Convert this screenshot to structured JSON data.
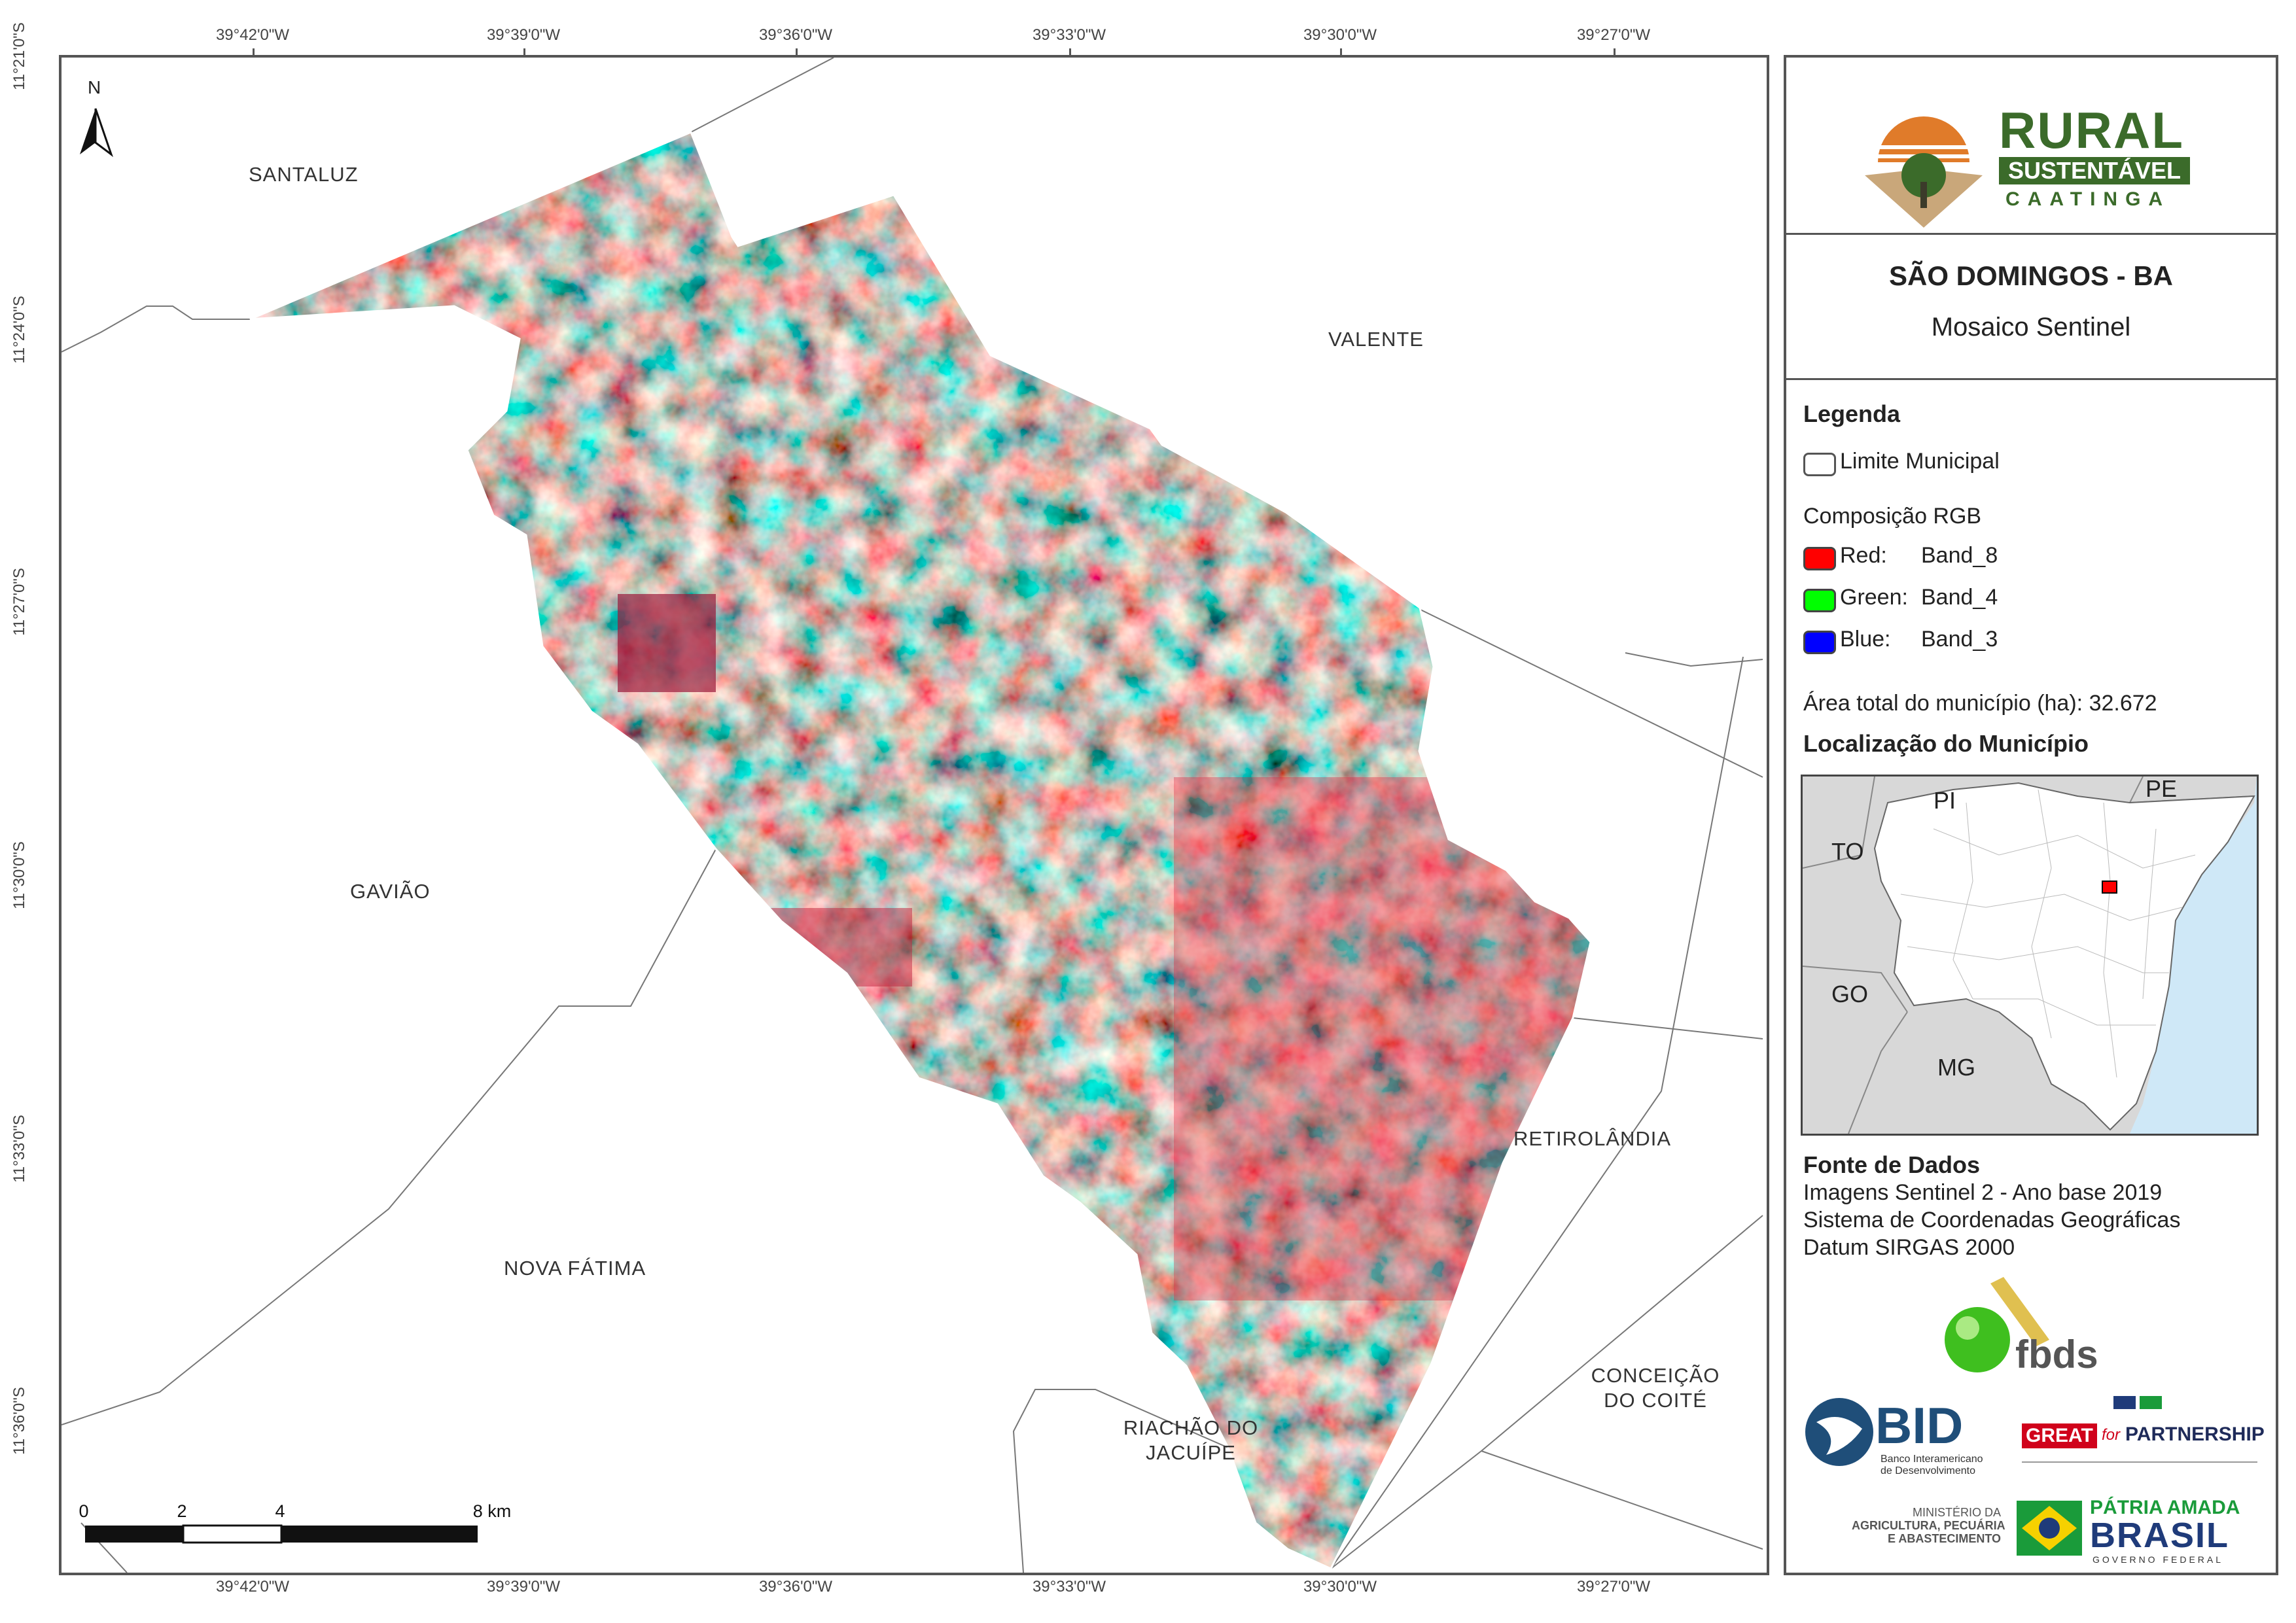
{
  "coordinates": {
    "longitudes": [
      "39°42'0\"W",
      "39°39'0\"W",
      "39°36'0\"W",
      "39°33'0\"W",
      "39°30'0\"W",
      "39°27'0\"W"
    ],
    "latitudes": [
      "11°21'0\"S",
      "11°24'0\"S",
      "11°27'0\"S",
      "11°30'0\"S",
      "11°33'0\"S",
      "11°36'0\"S"
    ]
  },
  "north_arrow": {
    "label": "N"
  },
  "places": {
    "santaluz": "SANTALUZ",
    "valente": "VALENTE",
    "gaviao": "GAVIÃO",
    "retirolandia": "RETIROLÂNDIA",
    "nova_fatima": "NOVA FÁTIMA",
    "conceicao_l1": "CONCEIÇÃO",
    "conceicao_l2": "DO COITÉ",
    "riachao_l1": "RIACHÃO DO",
    "riachao_l2": "JACUÍPE"
  },
  "scale_bar": {
    "labels": [
      "0",
      "2",
      "4",
      "8 km"
    ]
  },
  "logo": {
    "line1": "RURAL",
    "line2": "SUSTENTÁVEL",
    "line3": "CAATINGA"
  },
  "title": {
    "main": "SÃO DOMINGOS - BA",
    "subtitle": "Mosaico Sentinel"
  },
  "legend": {
    "heading": "Legenda",
    "boundary": "Limite Municipal",
    "rgb_heading": "Composição RGB",
    "bands": [
      {
        "channel": "Red:",
        "band": "Band_8",
        "color": "#ff0000"
      },
      {
        "channel": "Green:",
        "band": "Band_4",
        "color": "#00ff00"
      },
      {
        "channel": "Blue:",
        "band": "Band_3",
        "color": "#0000ff"
      }
    ],
    "area_label": "Área total do município (ha):",
    "area_value": "32.672",
    "location_heading": "Localização do Município"
  },
  "inset": {
    "PI": "PI",
    "PE": "PE",
    "TO": "TO",
    "GO": "GO",
    "MG": "MG"
  },
  "sources": {
    "heading": "Fonte de Dados",
    "lines": [
      "Imagens Sentinel 2 - Ano base 2019",
      "Sistema de Coordenadas Geográficas",
      "Datum SIRGAS 2000"
    ]
  },
  "partners": {
    "fbds": "fbds",
    "bid": "BID",
    "bid_sub1": "Banco Interamericano",
    "bid_sub2": "de Desenvolvimento",
    "great": "GREAT",
    "for": "for",
    "partnership": "PARTNERSHIP",
    "ministry1": "MINISTÉRIO DA",
    "ministry2": "AGRICULTURA, PECUÁRIA",
    "ministry3": "E ABASTECIMENTO",
    "patria": "PÁTRIA AMADA",
    "brasil": "BRASIL",
    "governo": "GOVERNO FEDERAL"
  },
  "colors": {
    "frame": "#555555",
    "logo_green": "#3b6b2a",
    "logo_orange": "#e07b2a",
    "sea": "#cfe8f7"
  }
}
